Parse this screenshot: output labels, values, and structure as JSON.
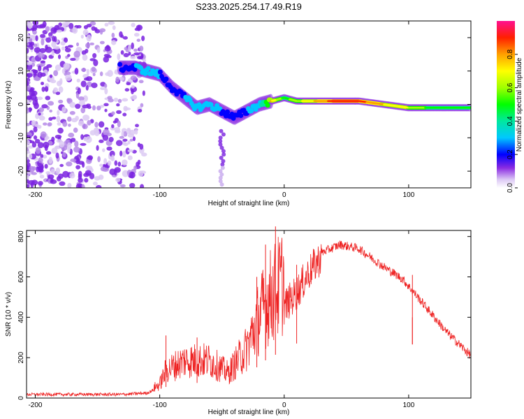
{
  "title": "S233.2025.254.17.49.R19",
  "colors": {
    "snr_line": "#ee2222",
    "axis": "#000000"
  },
  "chart_data": [
    {
      "type": "heatmap",
      "name": "spectrogram",
      "xlabel": "Height of straight line (km)",
      "ylabel": "Frequency (Hz)",
      "xlim": [
        -207,
        150
      ],
      "ylim": [
        -25,
        25
      ],
      "xticks": [
        -200,
        -100,
        0,
        100
      ],
      "yticks": [
        20,
        10,
        0,
        -10,
        -20
      ],
      "colorbar": {
        "label": "Normalized spectral amplitude",
        "range": [
          0,
          1
        ],
        "ticks": [
          0.0,
          0.2,
          0.4,
          0.6,
          0.8
        ]
      },
      "ridge": {
        "x": [
          -130,
          -120,
          -110,
          -100,
          -90,
          -80,
          -70,
          -60,
          -50,
          -40,
          -30,
          -20,
          -10,
          0,
          10,
          20,
          40,
          60,
          80,
          100,
          120,
          150
        ],
        "y": [
          11,
          11,
          10,
          9,
          5,
          2,
          -1,
          0,
          -2,
          -4,
          -2,
          0,
          1,
          2,
          1,
          1,
          1,
          1,
          0,
          -1,
          -1,
          -1
        ],
        "amplitude": [
          0.35,
          0.35,
          0.4,
          0.35,
          0.3,
          0.35,
          0.4,
          0.4,
          0.35,
          0.35,
          0.35,
          0.4,
          0.8,
          0.55,
          0.65,
          0.75,
          0.95,
          0.95,
          0.8,
          0.7,
          0.55,
          0.5
        ]
      }
    },
    {
      "type": "line",
      "name": "snr",
      "xlabel": "Height of straight line (km)",
      "ylabel": "SNR (10 * v/v)",
      "xlim": [
        -207,
        150
      ],
      "ylim": [
        0,
        830
      ],
      "xticks": [
        -200,
        -100,
        0,
        100
      ],
      "yticks": [
        0,
        200,
        400,
        600,
        800
      ],
      "envelope": {
        "x": [
          -207,
          -130,
          -110,
          -100,
          -95,
          -80,
          -60,
          -45,
          -30,
          -20,
          -12,
          0,
          10,
          20,
          30,
          45,
          60,
          80,
          95,
          110,
          130,
          150
        ],
        "y": [
          18,
          18,
          25,
          55,
          110,
          150,
          150,
          100,
          200,
          330,
          400,
          470,
          540,
          640,
          720,
          760,
          740,
          650,
          590,
          480,
          330,
          210
        ]
      },
      "spikes": [
        {
          "x": -95,
          "y": 310
        },
        {
          "x": -70,
          "y": 300
        },
        {
          "x": -22,
          "y": 600
        },
        {
          "x": -15,
          "y": 760
        },
        {
          "x": -7,
          "y": 850
        },
        {
          "x": 10,
          "y": 660
        },
        {
          "x": 103,
          "y": 610
        },
        {
          "x": 103,
          "y": 400
        }
      ]
    }
  ]
}
